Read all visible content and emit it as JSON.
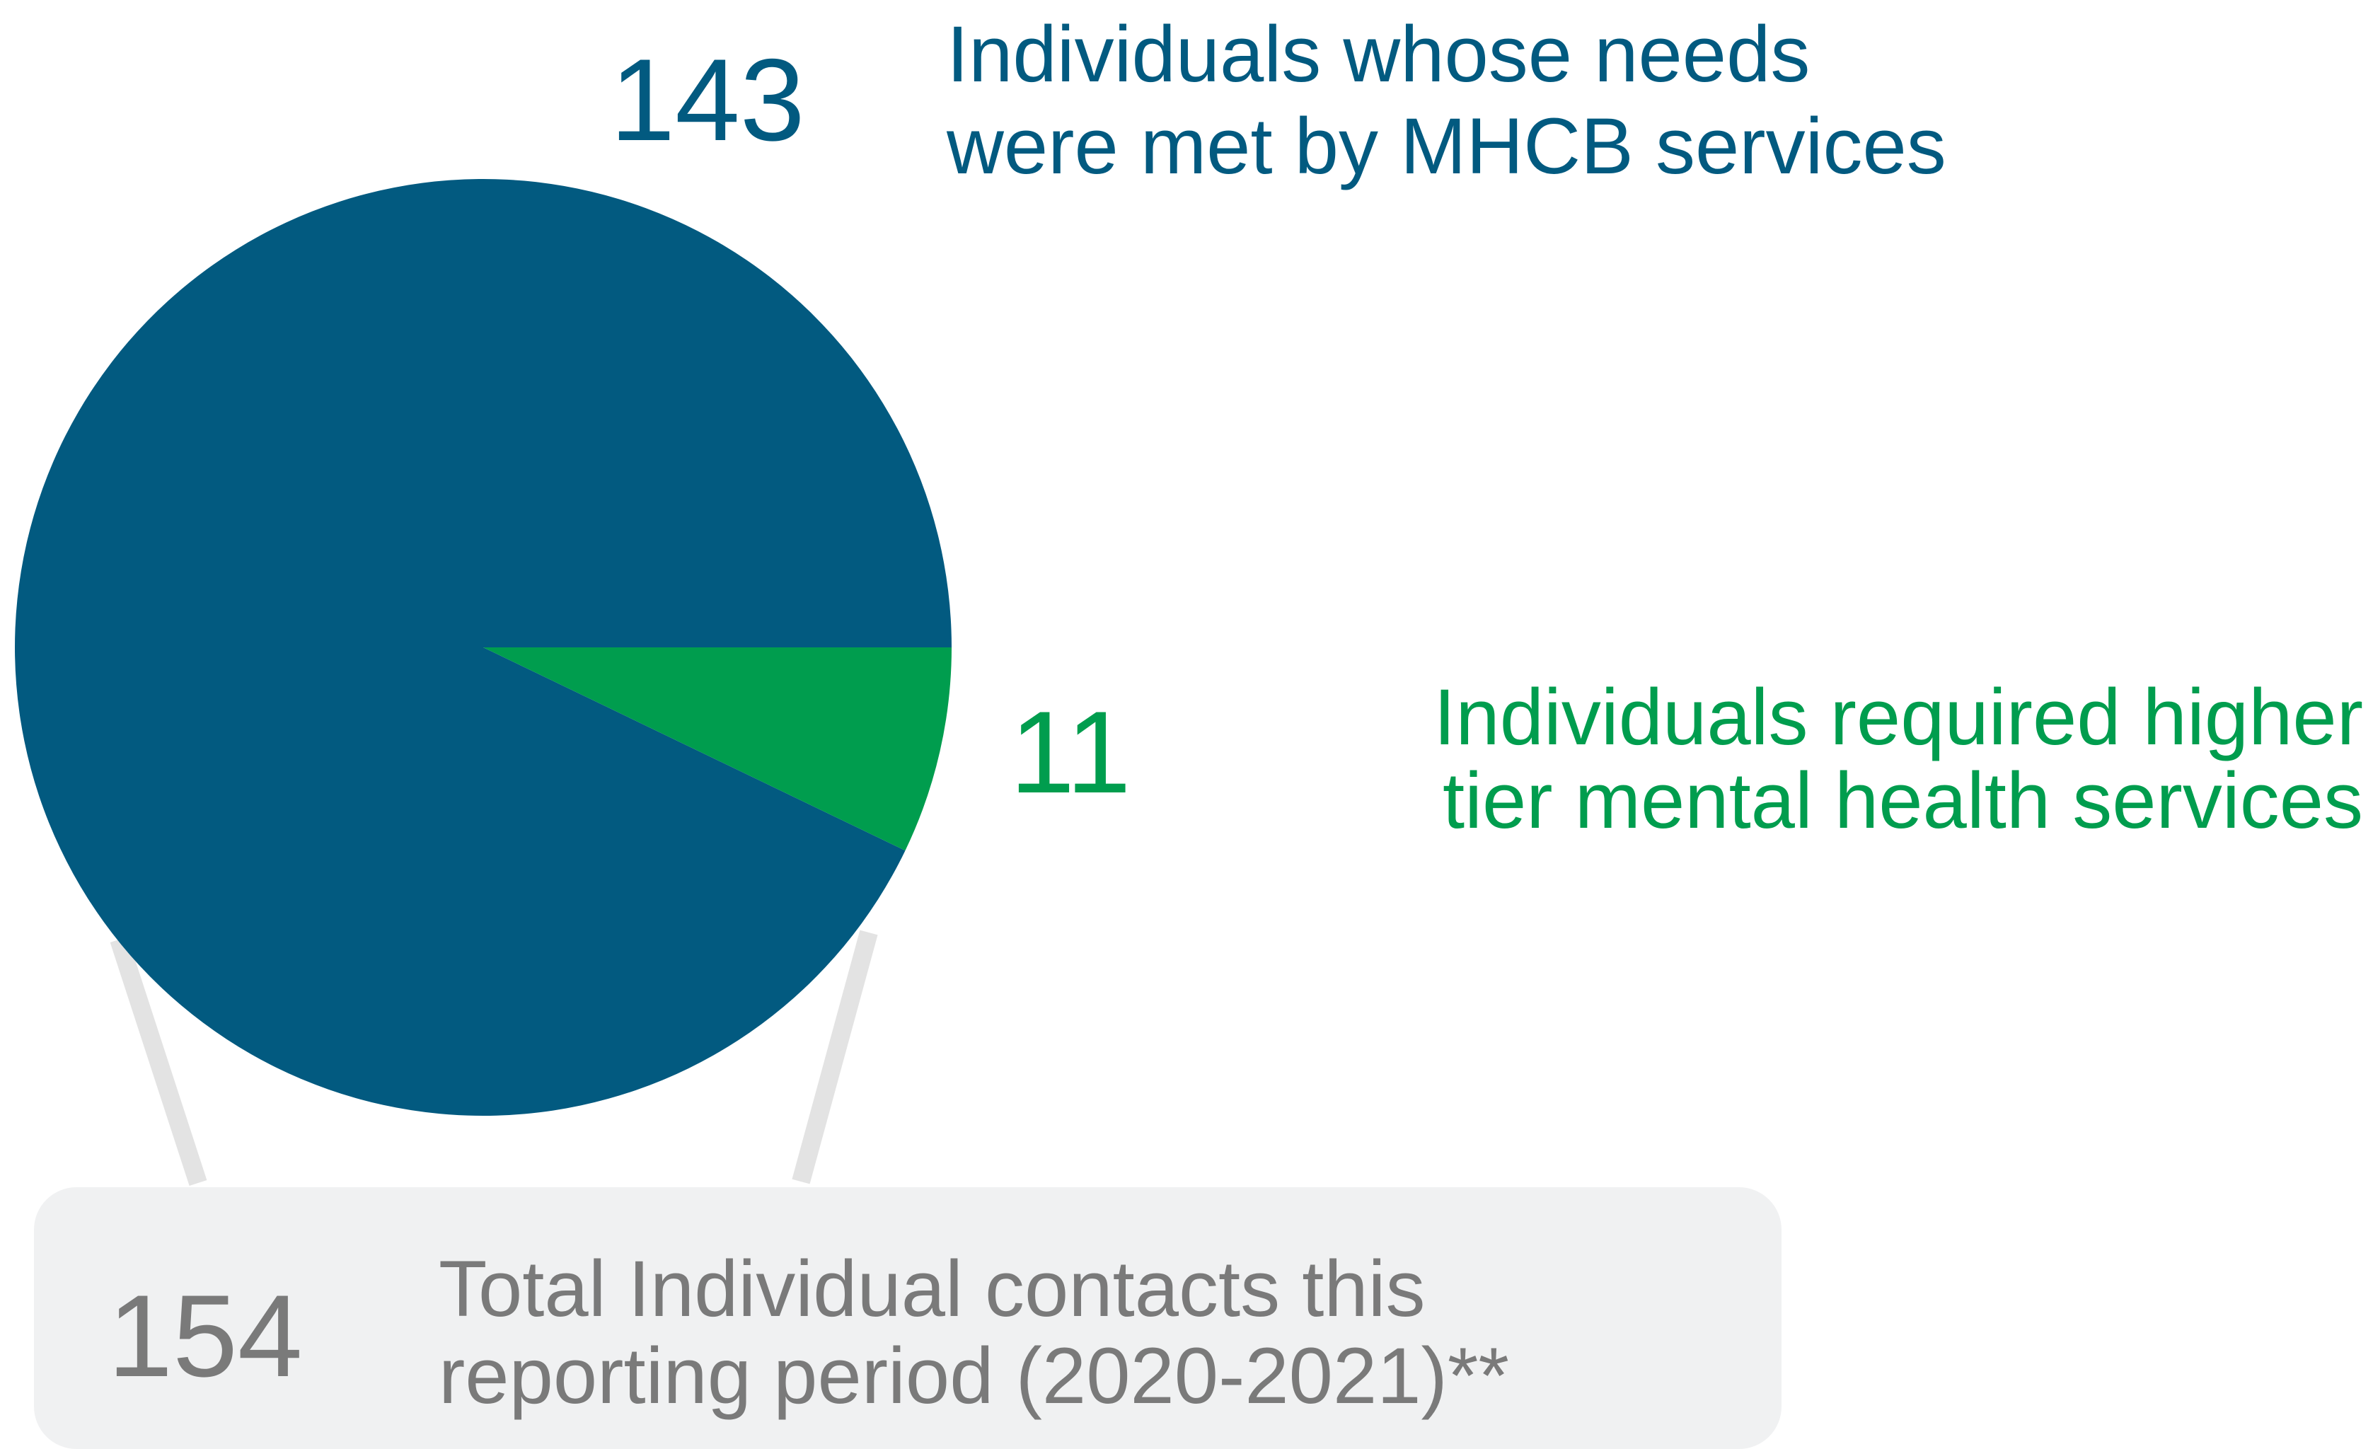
{
  "chart_data": {
    "type": "pie",
    "slices": [
      {
        "value": 143,
        "value_label": "143",
        "label_lines": [
          "Individuals whose needs",
          "were met by MHCB services"
        ],
        "color": "#025A80"
      },
      {
        "value": 11,
        "value_label": "11",
        "label_lines": [
          "Individuals required higher",
          "tier mental health services"
        ],
        "color": "#009D4E"
      }
    ],
    "total": {
      "value": 154,
      "value_label": "154",
      "label_lines": [
        "Total Individual contacts this",
        "reporting period (2020-2021)**"
      ],
      "color": "#7A7A7A",
      "box_color": "#F0F1F2"
    },
    "connector_color": "#E3E3E3"
  }
}
